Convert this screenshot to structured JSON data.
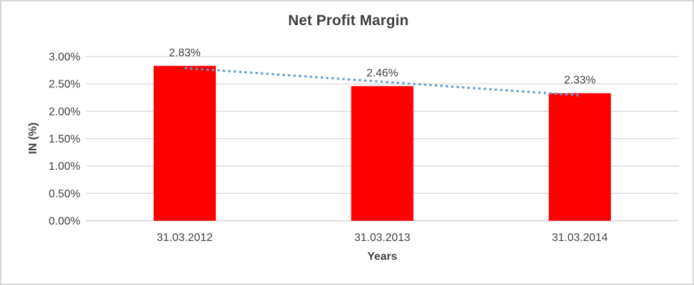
{
  "chart_data": {
    "type": "bar",
    "title": "Net Profit Margin",
    "xlabel": "Years",
    "ylabel": "IN (%)",
    "categories": [
      "31.03.2012",
      "31.03.2013",
      "31.03.2014"
    ],
    "values": [
      2.83,
      2.46,
      2.33
    ],
    "data_labels": [
      "2.83%",
      "2.46%",
      "2.33%"
    ],
    "ylim": [
      0,
      3.0
    ],
    "ytick_step": 0.5,
    "ytick_labels": [
      "0.00%",
      "0.50%",
      "1.00%",
      "1.50%",
      "2.00%",
      "2.50%",
      "3.00%"
    ],
    "grid": true,
    "legend": "none",
    "series_name": "Net Profit Margin",
    "trendline": {
      "type": "linear",
      "style": "dotted"
    },
    "colors": {
      "bar": "#ff0000",
      "trendline": "#5b9bd5",
      "gridline": "#d9d9d9",
      "axis_line": "#c9c9c9",
      "text": "#404040",
      "title_text": "#3f3f3f",
      "border": "#d6d6d6",
      "background": "#ffffff"
    }
  }
}
